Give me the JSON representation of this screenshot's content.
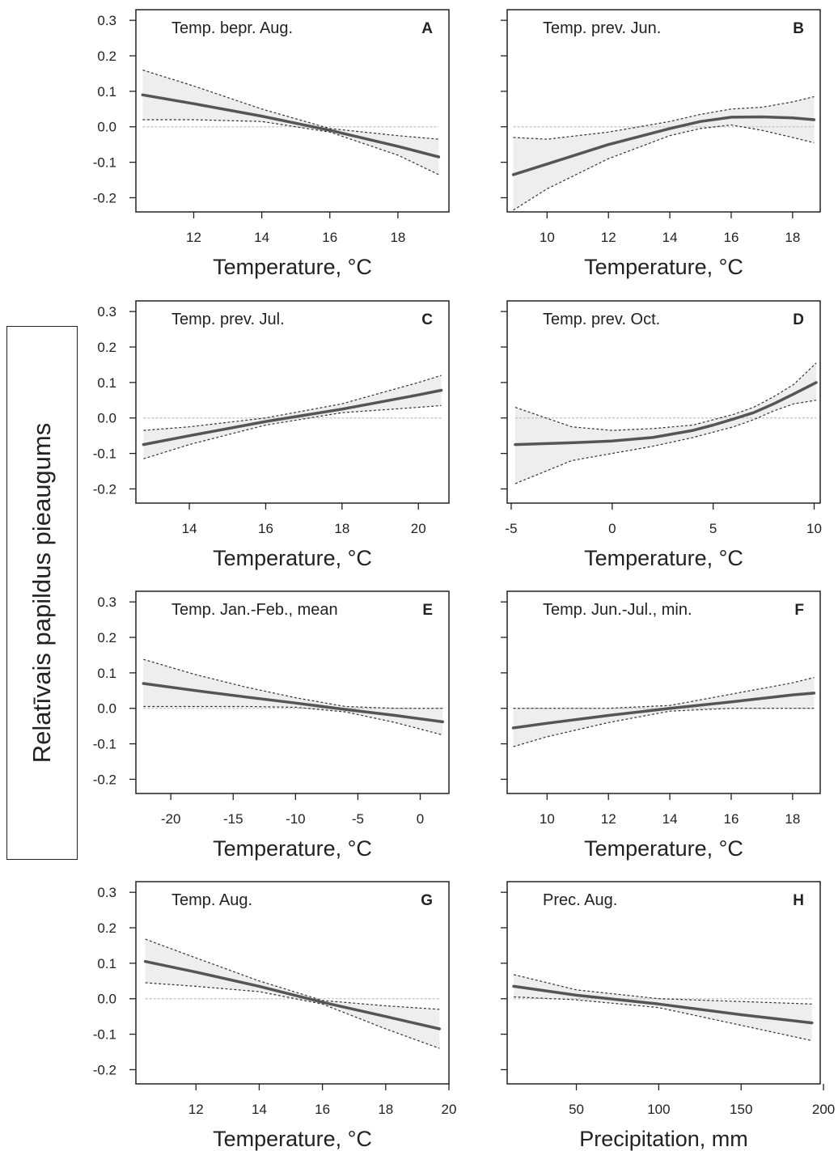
{
  "y_axis_label": "Relatīvais papildus pieaugums",
  "y_ticks": [
    "0.3",
    "0.2",
    "0.1",
    "0.0",
    "-0.1",
    "-0.2"
  ],
  "colors": {
    "line": "#555555",
    "band": "#eeeeee",
    "bound": "#333333",
    "zero": "#c0c0c0"
  },
  "chart_data": [
    {
      "type": "line",
      "letter": "A",
      "title": "Temp. bepr. Aug.",
      "xlabel": "Temperature, °C",
      "xlim": [
        10.3,
        19.5
      ],
      "xticks": [
        12,
        14,
        16,
        18
      ],
      "ylim": [
        -0.24,
        0.33
      ],
      "x": [
        10.5,
        12,
        14,
        16,
        18,
        19.2
      ],
      "y": [
        0.09,
        0.065,
        0.03,
        -0.01,
        -0.055,
        -0.085
      ],
      "lower": [
        0.02,
        0.02,
        0.015,
        -0.015,
        -0.08,
        -0.135
      ],
      "upper": [
        0.16,
        0.115,
        0.05,
        -0.005,
        -0.025,
        -0.035
      ]
    },
    {
      "type": "line",
      "letter": "B",
      "title": "Temp. prev. Jun.",
      "xlabel": "Temperature, °C",
      "xlim": [
        8.7,
        18.9
      ],
      "xticks": [
        10,
        12,
        14,
        16,
        18
      ],
      "ylim": [
        -0.24,
        0.33
      ],
      "x": [
        8.9,
        10,
        12,
        14,
        15,
        16,
        17,
        18,
        18.7
      ],
      "y": [
        -0.135,
        -0.105,
        -0.05,
        -0.005,
        0.015,
        0.027,
        0.028,
        0.025,
        0.02
      ],
      "lower": [
        -0.235,
        -0.175,
        -0.09,
        -0.025,
        -0.005,
        0.005,
        -0.01,
        -0.03,
        -0.045
      ],
      "upper": [
        -0.03,
        -0.035,
        -0.015,
        0.015,
        0.035,
        0.05,
        0.055,
        0.07,
        0.085
      ]
    },
    {
      "type": "line",
      "letter": "C",
      "title": "Temp. prev. Jul.",
      "xlabel": "Temperature, °C",
      "xlim": [
        12.6,
        20.8
      ],
      "xticks": [
        14,
        16,
        18,
        20
      ],
      "ylim": [
        -0.24,
        0.33
      ],
      "x": [
        12.8,
        14,
        16,
        18,
        20,
        20.6
      ],
      "y": [
        -0.075,
        -0.05,
        -0.01,
        0.025,
        0.065,
        0.078
      ],
      "lower": [
        -0.115,
        -0.075,
        -0.02,
        0.015,
        0.03,
        0.035
      ],
      "upper": [
        -0.035,
        -0.025,
        0.0,
        0.04,
        0.1,
        0.12
      ]
    },
    {
      "type": "line",
      "letter": "D",
      "title": "Temp. prev. Oct.",
      "xlabel": "Temperature, °C",
      "xlim": [
        -5.2,
        10.3
      ],
      "xticks": [
        -5,
        0,
        5,
        10
      ],
      "ylim": [
        -0.24,
        0.33
      ],
      "x": [
        -4.8,
        -2,
        0,
        2,
        4,
        5,
        6,
        7,
        8,
        9,
        10.1
      ],
      "y": [
        -0.075,
        -0.07,
        -0.065,
        -0.055,
        -0.035,
        -0.02,
        -0.003,
        0.015,
        0.04,
        0.068,
        0.1
      ],
      "lower": [
        -0.185,
        -0.12,
        -0.1,
        -0.08,
        -0.055,
        -0.04,
        -0.025,
        -0.005,
        0.02,
        0.04,
        0.05
      ],
      "upper": [
        0.03,
        -0.025,
        -0.035,
        -0.03,
        -0.02,
        -0.005,
        0.01,
        0.03,
        0.06,
        0.095,
        0.155
      ]
    },
    {
      "type": "line",
      "letter": "E",
      "title": "Temp. Jan.-Feb., mean",
      "xlabel": "Temperature, °C",
      "xlim": [
        -22.8,
        2.3
      ],
      "xticks": [
        -20,
        -15,
        -10,
        -5,
        0
      ],
      "ylim": [
        -0.24,
        0.33
      ],
      "x": [
        -22.2,
        -18,
        -14,
        -10,
        -6,
        -2,
        1.8
      ],
      "y": [
        0.07,
        0.05,
        0.032,
        0.015,
        -0.003,
        -0.02,
        -0.038
      ],
      "lower": [
        0.005,
        0.005,
        0.005,
        0.003,
        -0.01,
        -0.04,
        -0.075
      ],
      "upper": [
        0.138,
        0.095,
        0.06,
        0.03,
        0.005,
        0.0,
        0.0
      ]
    },
    {
      "type": "line",
      "letter": "F",
      "title": "Temp. Jun.-Jul., min.",
      "xlabel": "Temperature, °C",
      "xlim": [
        8.7,
        18.9
      ],
      "xticks": [
        10,
        12,
        14,
        16,
        18
      ],
      "ylim": [
        -0.24,
        0.33
      ],
      "x": [
        8.9,
        10,
        12,
        14,
        16,
        18,
        18.7
      ],
      "y": [
        -0.055,
        -0.042,
        -0.02,
        0.0,
        0.018,
        0.038,
        0.043
      ],
      "lower": [
        -0.108,
        -0.08,
        -0.04,
        -0.008,
        0.0,
        0.0,
        0.0
      ],
      "upper": [
        0.0,
        0.0,
        0.0,
        0.008,
        0.04,
        0.072,
        0.087
      ]
    },
    {
      "type": "line",
      "letter": "G",
      "title": "Temp. Aug.",
      "xlabel": "Temperature, °C",
      "xlim": [
        10.1,
        20.0
      ],
      "xticks": [
        12,
        14,
        16,
        18,
        20
      ],
      "ylim": [
        -0.24,
        0.33
      ],
      "x": [
        10.4,
        12,
        14,
        16,
        18,
        19.7
      ],
      "y": [
        0.105,
        0.075,
        0.035,
        -0.01,
        -0.05,
        -0.085
      ],
      "lower": [
        0.045,
        0.035,
        0.02,
        -0.015,
        -0.085,
        -0.14
      ],
      "upper": [
        0.168,
        0.115,
        0.05,
        -0.005,
        -0.02,
        -0.03
      ]
    },
    {
      "type": "line",
      "letter": "H",
      "title": "Prec. Aug.",
      "xlabel": "Precipitation, mm",
      "xlim": [
        8,
        198
      ],
      "xticks": [
        50,
        100,
        150,
        200
      ],
      "ylim": [
        -0.24,
        0.33
      ],
      "x": [
        12,
        50,
        100,
        150,
        193
      ],
      "y": [
        0.035,
        0.01,
        -0.015,
        -0.045,
        -0.068
      ],
      "lower": [
        0.005,
        -0.003,
        -0.025,
        -0.075,
        -0.118
      ],
      "upper": [
        0.068,
        0.025,
        0.0,
        -0.008,
        -0.015
      ]
    }
  ]
}
